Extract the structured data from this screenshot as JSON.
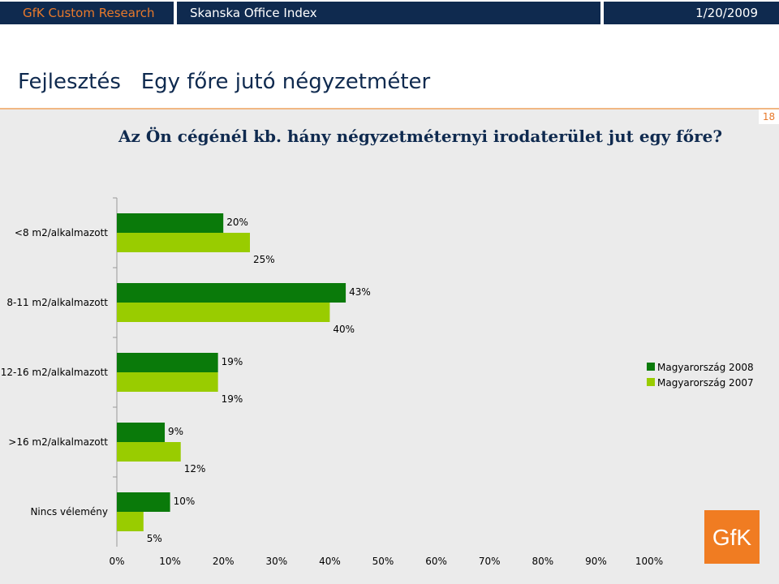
{
  "header": {
    "left": "GfK Custom Research",
    "center": "Skanska Office Index",
    "date": "1/20/2009"
  },
  "page": {
    "title": "Fejlesztés   Egy főre jutó négyzetméter",
    "question": "Az Ön cégénél kb. hány négyzetméternyi irodaterület jut egy főre?",
    "page_number": "18"
  },
  "logo_text": "GfK",
  "colors": {
    "header_bg": "#0f2a4f",
    "accent": "#e8792b",
    "series_2008": "#0a7a0a",
    "series_2007": "#99cc00",
    "panel_bg": "#ebebeb"
  },
  "chart_data": {
    "type": "bar",
    "orientation": "horizontal",
    "categories": [
      "<8 m2/alkalmazott",
      "8-11 m2/alkalmazott",
      "12-16 m2/alkalmazott",
      ">16 m2/alkalmazott",
      "Nincs vélemény"
    ],
    "series": [
      {
        "name": "Magyarország 2008",
        "values": [
          20,
          43,
          19,
          9,
          10
        ],
        "labels": [
          "20%",
          "43%",
          "19%",
          "9%",
          "10%"
        ]
      },
      {
        "name": "Magyarország 2007",
        "values": [
          25,
          40,
          19,
          12,
          5
        ],
        "labels": [
          "25%",
          "40%",
          "19%",
          "12%",
          "5%"
        ]
      }
    ],
    "xlim": [
      0,
      100
    ],
    "x_ticks": [
      "0%",
      "10%",
      "20%",
      "30%",
      "40%",
      "50%",
      "60%",
      "70%",
      "80%",
      "90%",
      "100%"
    ],
    "legend_position": "right",
    "grid": false
  }
}
